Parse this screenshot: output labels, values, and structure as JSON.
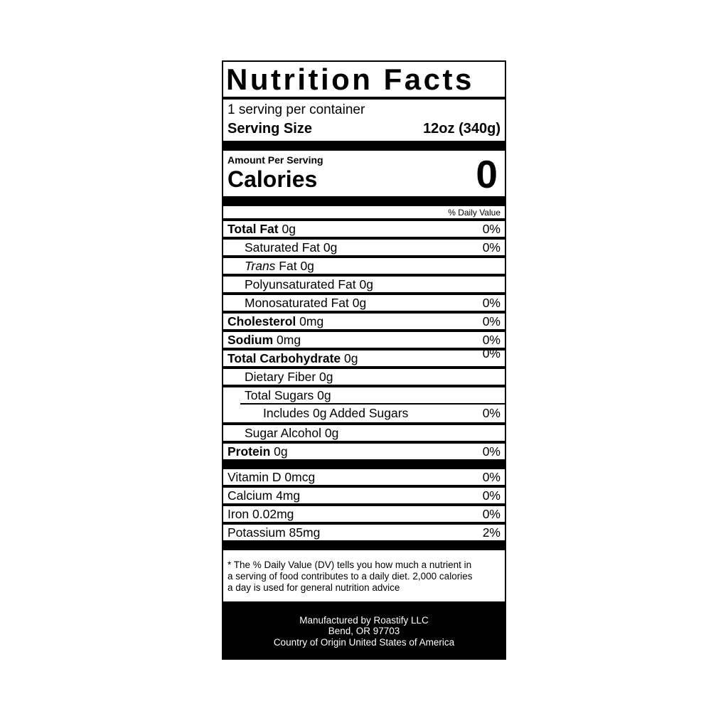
{
  "colors": {
    "ink": "#000000",
    "paper": "#ffffff"
  },
  "label": {
    "title": "Nutrition Facts",
    "serving_info": "1 serving per container",
    "serving_size_label": "Serving Size",
    "serving_size_value": "12oz (340g)",
    "amount_per_serving": "Amount Per Serving",
    "calories_label": "Calories",
    "calories_value": "0",
    "daily_value_header": "% Daily Value",
    "nutrient_rows": [
      {
        "segments": [
          {
            "text": "Total Fat",
            "style": "b"
          },
          {
            "text": " 0g",
            "style": "r"
          }
        ],
        "dv": "0%",
        "indent": 0
      },
      {
        "segments": [
          {
            "text": "Saturated Fat 0g",
            "style": "r"
          }
        ],
        "dv": "0%",
        "indent": 1
      },
      {
        "segments": [
          {
            "text": "Trans",
            "style": "i"
          },
          {
            "text": " Fat 0g",
            "style": "r"
          }
        ],
        "dv": "",
        "indent": 1
      },
      {
        "segments": [
          {
            "text": "Polyunsaturated Fat 0g",
            "style": "r"
          }
        ],
        "dv": "",
        "indent": 1
      },
      {
        "segments": [
          {
            "text": "Monosaturated Fat 0g",
            "style": "r"
          }
        ],
        "dv": "0%",
        "indent": 1
      },
      {
        "segments": [
          {
            "text": "Cholesterol",
            "style": "b"
          },
          {
            "text": " 0mg",
            "style": "r"
          }
        ],
        "dv": "0%",
        "indent": 0
      },
      {
        "segments": [
          {
            "text": "Sodium",
            "style": "b"
          },
          {
            "text": " 0mg",
            "style": "r"
          }
        ],
        "dv": "0%",
        "indent": 0
      },
      {
        "segments": [
          {
            "text": "Total Carbohydrate",
            "style": "b"
          },
          {
            "text": " 0g",
            "style": "r"
          }
        ],
        "dv": "0%",
        "indent": 0,
        "dv_raised": true
      },
      {
        "segments": [
          {
            "text": "Dietary Fiber 0g",
            "style": "r"
          }
        ],
        "dv": "",
        "indent": 1
      },
      {
        "segments": [
          {
            "text": "Total Sugars 0g",
            "style": "r"
          }
        ],
        "dv": "",
        "indent": 1,
        "no_bottom": true
      },
      {
        "segments": [
          {
            "text": "Includes 0g Added Sugars",
            "style": "r"
          }
        ],
        "dv": "0%",
        "indent": 2,
        "no_top": true,
        "partial_line": true
      },
      {
        "segments": [
          {
            "text": "Sugar Alcohol 0g",
            "style": "r"
          }
        ],
        "dv": "",
        "indent": 1
      },
      {
        "segments": [
          {
            "text": "Protein",
            "style": "b"
          },
          {
            "text": " 0g",
            "style": "r"
          }
        ],
        "dv": "0%",
        "indent": 0
      }
    ],
    "vitamin_rows": [
      {
        "segments": [
          {
            "text": "Vitamin D 0mcg",
            "style": "r"
          }
        ],
        "dv": "0%",
        "indent": 0
      },
      {
        "segments": [
          {
            "text": "Calcium 4mg",
            "style": "r"
          }
        ],
        "dv": "0%",
        "indent": 0
      },
      {
        "segments": [
          {
            "text": "Iron 0.02mg",
            "style": "r"
          }
        ],
        "dv": "0%",
        "indent": 0
      },
      {
        "segments": [
          {
            "text": "Potassium 85mg",
            "style": "r"
          }
        ],
        "dv": "2%",
        "indent": 0
      }
    ],
    "footnote_lines": [
      "* The % Daily Value (DV) tells you how much a nutrient in",
      "a serving of food contributes to a daily diet. 2,000 calories",
      "a day is used for general nutrition advice"
    ],
    "footer_lines": [
      "Manufactured by Roastify LLC",
      "Bend, OR 97703",
      "Country of Origin United States of America"
    ]
  }
}
